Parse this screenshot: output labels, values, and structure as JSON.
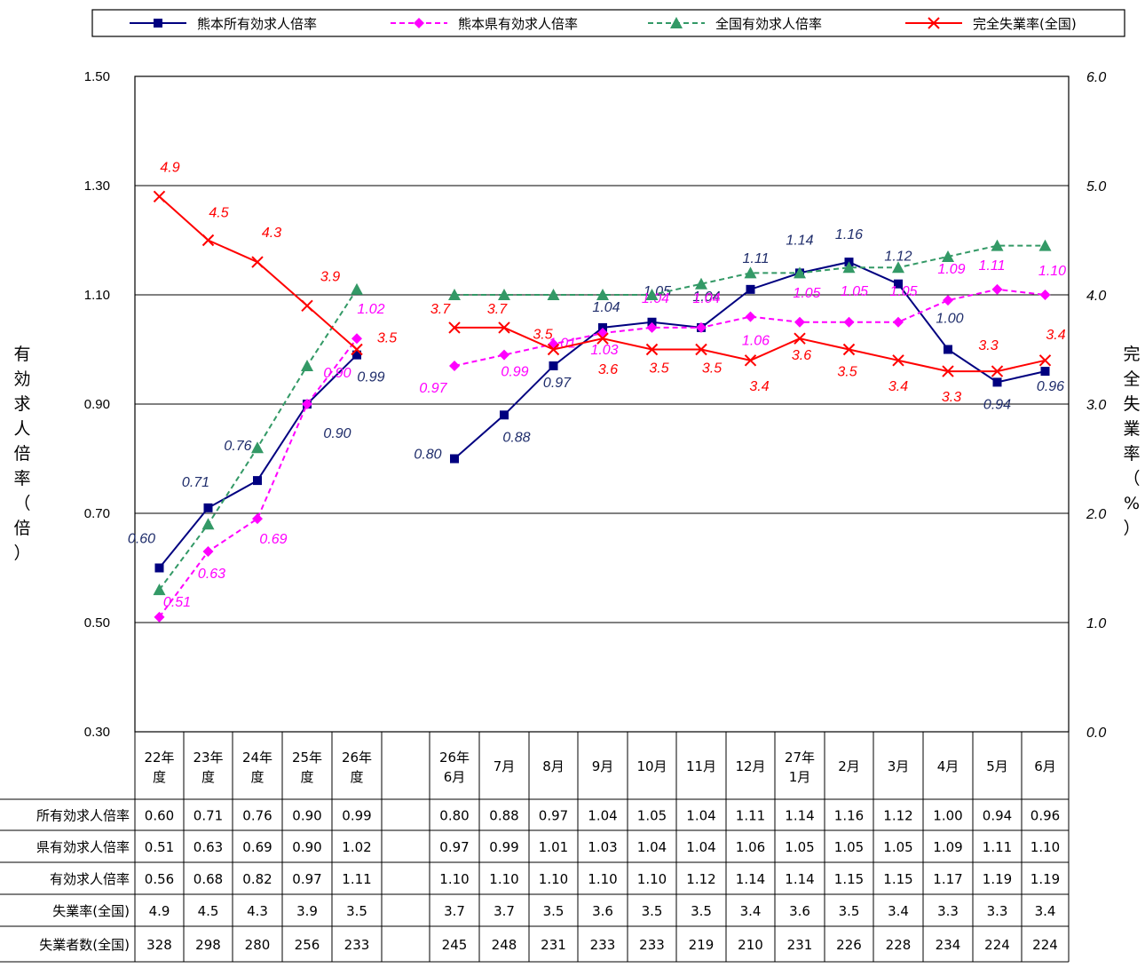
{
  "chart_data": {
    "type": "line",
    "legend_position": "top",
    "categories": [
      "22年度",
      "23年度",
      "24年度",
      "25年度",
      "26年度",
      "",
      "26年6月",
      "7月",
      "8月",
      "9月",
      "10月",
      "11月",
      "12月",
      "27年1月",
      "2月",
      "3月",
      "4月",
      "5月",
      "6月"
    ],
    "categories_display": [
      [
        "22年",
        "度"
      ],
      [
        "23年",
        "度"
      ],
      [
        "24年",
        "度"
      ],
      [
        "25年",
        "度"
      ],
      [
        "26年",
        "度"
      ],
      [],
      [
        "26年",
        "6月"
      ],
      [
        "7月"
      ],
      [
        "8月"
      ],
      [
        "9月"
      ],
      [
        "10月"
      ],
      [
        "11月"
      ],
      [
        "12月"
      ],
      [
        "27年",
        "1月"
      ],
      [
        "2月"
      ],
      [
        "3月"
      ],
      [
        "4月"
      ],
      [
        "5月"
      ],
      [
        "6月"
      ]
    ],
    "y_left": {
      "label": "有効求人倍率（倍）",
      "label_chars": [
        "有",
        "効",
        "求",
        "人",
        "倍",
        "率",
        "（",
        "倍",
        "）"
      ],
      "min": 0.3,
      "max": 1.5,
      "ticks": [
        "0.30",
        "0.50",
        "0.70",
        "0.90",
        "1.10",
        "1.30",
        "1.50"
      ]
    },
    "y_right": {
      "label": "完全失業率（%）",
      "label_chars": [
        "完",
        "全",
        "失",
        "業",
        "率",
        "（",
        "%",
        "）"
      ],
      "min": 0.0,
      "max": 6.0,
      "ticks": [
        "0.0",
        "1.0",
        "2.0",
        "3.0",
        "4.0",
        "5.0",
        "6.0"
      ]
    },
    "grid": true,
    "series": [
      {
        "name": "熊本所有効求人倍率",
        "axis": "left",
        "color": "#000080",
        "marker": "square",
        "dash": false,
        "values": [
          0.6,
          0.71,
          0.76,
          0.9,
          0.99,
          null,
          0.8,
          0.88,
          0.97,
          1.04,
          1.05,
          1.04,
          1.11,
          1.14,
          1.16,
          1.12,
          1.0,
          0.94,
          0.96
        ],
        "labels": [
          "0.60",
          "0.71",
          "0.76",
          "0.90",
          "0.99",
          "",
          "0.80",
          "0.88",
          "0.97",
          "1.04",
          "1.05",
          "1.04",
          "1.11",
          "1.14",
          "1.16",
          "1.12",
          "1.00",
          "0.94",
          "0.96"
        ]
      },
      {
        "name": "熊本県有効求人倍率",
        "axis": "left",
        "color": "#ff00ff",
        "marker": "diamond",
        "dash": true,
        "values": [
          0.51,
          0.63,
          0.69,
          0.9,
          1.02,
          null,
          0.97,
          0.99,
          1.01,
          1.03,
          1.04,
          1.04,
          1.06,
          1.05,
          1.05,
          1.05,
          1.09,
          1.11,
          1.1
        ],
        "labels": [
          "0.51",
          "0.63",
          "0.69",
          "0.90",
          "1.02",
          "",
          "0.97",
          "0.99",
          "1.01",
          "1.03",
          "1.04",
          "1.04",
          "1.06",
          "1.05",
          "1.05",
          "1.05",
          "1.09",
          "1.11",
          "1.10"
        ]
      },
      {
        "name": "全国有効求人倍率",
        "axis": "left",
        "color": "#339966",
        "marker": "triangle",
        "dash": true,
        "values": [
          0.56,
          0.68,
          0.82,
          0.97,
          1.11,
          null,
          1.1,
          1.1,
          1.1,
          1.1,
          1.1,
          1.12,
          1.14,
          1.14,
          1.15,
          1.15,
          1.17,
          1.19,
          1.19
        ],
        "labels": [
          "0.56",
          "0.68",
          "0.82",
          "0.97",
          "1.11",
          "",
          "1.10",
          "1.10",
          "1.10",
          "1.10",
          "1.10",
          "1.12",
          "1.14",
          "1.14",
          "1.15",
          "1.15",
          "1.17",
          "1.19",
          "1.19"
        ]
      },
      {
        "name": "完全失業率(全国)",
        "axis": "right",
        "color": "#ff0000",
        "marker": "x",
        "dash": false,
        "values": [
          4.9,
          4.5,
          4.3,
          3.9,
          3.5,
          null,
          3.7,
          3.7,
          3.5,
          3.6,
          3.5,
          3.5,
          3.4,
          3.6,
          3.5,
          3.4,
          3.3,
          3.3,
          3.4
        ],
        "labels": [
          "4.9",
          "4.5",
          "4.3",
          "3.9",
          "3.5",
          "",
          "3.7",
          "3.7",
          "3.5",
          "3.6",
          "3.5",
          "3.5",
          "3.4",
          "3.6",
          "3.5",
          "3.4",
          "3.3",
          "3.3",
          "3.4"
        ]
      }
    ],
    "table": {
      "rows": [
        {
          "name": "所有効求人倍率",
          "cells": [
            "0.60",
            "0.71",
            "0.76",
            "0.90",
            "0.99",
            "",
            "0.80",
            "0.88",
            "0.97",
            "1.04",
            "1.05",
            "1.04",
            "1.11",
            "1.14",
            "1.16",
            "1.12",
            "1.00",
            "0.94",
            "0.96"
          ]
        },
        {
          "name": "県有効求人倍率",
          "cells": [
            "0.51",
            "0.63",
            "0.69",
            "0.90",
            "1.02",
            "",
            "0.97",
            "0.99",
            "1.01",
            "1.03",
            "1.04",
            "1.04",
            "1.06",
            "1.05",
            "1.05",
            "1.05",
            "1.09",
            "1.11",
            "1.10"
          ]
        },
        {
          "name": "有効求人倍率",
          "cells": [
            "0.56",
            "0.68",
            "0.82",
            "0.97",
            "1.11",
            "",
            "1.10",
            "1.10",
            "1.10",
            "1.10",
            "1.10",
            "1.12",
            "1.14",
            "1.14",
            "1.15",
            "1.15",
            "1.17",
            "1.19",
            "1.19"
          ]
        },
        {
          "name": "失業率(全国)",
          "cells": [
            "4.9",
            "4.5",
            "4.3",
            "3.9",
            "3.5",
            "",
            "3.7",
            "3.7",
            "3.5",
            "3.6",
            "3.5",
            "3.5",
            "3.4",
            "3.6",
            "3.5",
            "3.4",
            "3.3",
            "3.3",
            "3.4"
          ]
        },
        {
          "name": "失業者数(全国)",
          "cells": [
            "328",
            "298",
            "280",
            "256",
            "233",
            "",
            "245",
            "248",
            "231",
            "233",
            "233",
            "219",
            "210",
            "231",
            "226",
            "228",
            "234",
            "224",
            "224"
          ]
        }
      ]
    }
  }
}
